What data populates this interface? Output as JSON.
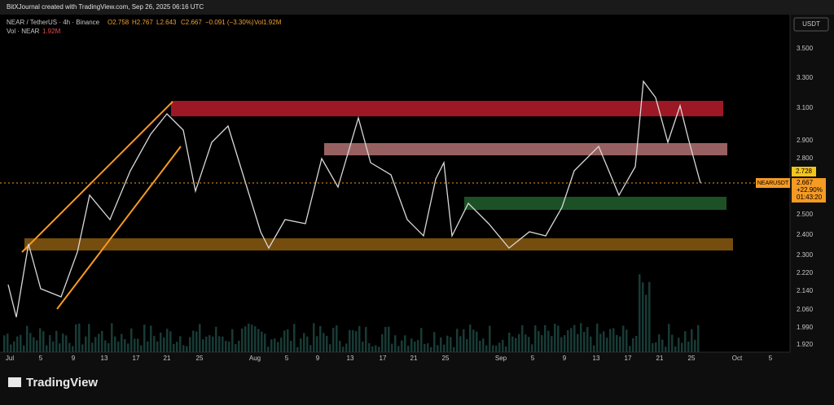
{
  "header": {
    "credit": "BitXJournal created with TradingView.com, Sep 26, 2025 06:16 UTC"
  },
  "legend": {
    "symbol": "NEAR / TetherUS · 4h · Binance",
    "open": "O2.758",
    "high": "H2.767",
    "low": "L2.643",
    "close": "C2.667",
    "change": "−0.091 (−3.30%)",
    "volume": "Vol1.92M",
    "vol_study": "Vol · NEAR",
    "vol_value": "1.92M"
  },
  "price_axis": {
    "currency": "USDT",
    "labels": [
      "3.500",
      "3.300",
      "3.100",
      "2.900",
      "2.800",
      "2.500",
      "2.400",
      "2.300",
      "2.220",
      "2.140",
      "2.060",
      "1.990",
      "1.920"
    ],
    "marker_price": "2.728",
    "ticker": "NEARUSDT",
    "last_price": "2.667",
    "last_change": "+22.90%",
    "countdown": "01:43:20"
  },
  "time_axis": {
    "labels": [
      "Jul",
      "5",
      "9",
      "13",
      "17",
      "21",
      "25",
      "Aug",
      "5",
      "9",
      "13",
      "17",
      "21",
      "25",
      "Sep",
      "5",
      "9",
      "13",
      "17",
      "21",
      "25",
      "Oct",
      "5"
    ]
  },
  "footer": {
    "brand": "TradingView"
  }
}
